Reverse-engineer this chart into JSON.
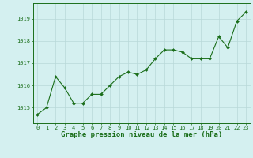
{
  "x": [
    0,
    1,
    2,
    3,
    4,
    5,
    6,
    7,
    8,
    9,
    10,
    11,
    12,
    13,
    14,
    15,
    16,
    17,
    18,
    19,
    20,
    21,
    22,
    23
  ],
  "y": [
    1014.7,
    1015.0,
    1016.4,
    1015.9,
    1015.2,
    1015.2,
    1015.6,
    1015.6,
    1016.0,
    1016.4,
    1016.6,
    1016.5,
    1016.7,
    1017.2,
    1017.6,
    1017.6,
    1017.5,
    1017.2,
    1017.2,
    1017.2,
    1018.2,
    1017.7,
    1018.9,
    1019.3
  ],
  "line_color": "#1a6e1a",
  "marker_color": "#1a6e1a",
  "bg_color": "#d4f0f0",
  "grid_color": "#b8d8d8",
  "axis_color": "#1a6e1a",
  "tick_color": "#1a6e1a",
  "xlabel": "Graphe pression niveau de la mer (hPa)",
  "xlabel_fontsize": 6.5,
  "ylabel_ticks": [
    1015,
    1016,
    1017,
    1018,
    1019
  ],
  "ylim": [
    1014.3,
    1019.7
  ],
  "xlim": [
    -0.5,
    23.5
  ],
  "xtick_labels": [
    "0",
    "1",
    "2",
    "3",
    "4",
    "5",
    "6",
    "7",
    "8",
    "9",
    "10",
    "11",
    "12",
    "13",
    "14",
    "15",
    "16",
    "17",
    "18",
    "19",
    "20",
    "21",
    "22",
    "23"
  ],
  "tick_fontsize": 5.0,
  "marker_size": 2.0,
  "line_width": 0.8
}
